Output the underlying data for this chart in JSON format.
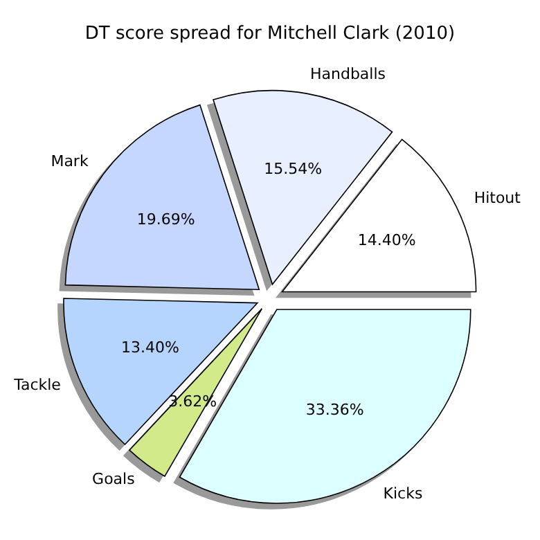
{
  "chart_data": {
    "type": "pie",
    "title": "DT score spread for Mitchell Clark (2010)",
    "categories": [
      "Hitout",
      "Handballs",
      "Mark",
      "Tackle",
      "Goals",
      "Kicks"
    ],
    "values": [
      14.4,
      15.54,
      19.69,
      13.4,
      3.62,
      33.36
    ],
    "value_labels": [
      "14.40%",
      "15.54%",
      "19.69%",
      "13.40%",
      "3.62%",
      "33.36%"
    ],
    "colors": [
      "#ffffff",
      "#e8efff",
      "#c5d6ff",
      "#b5d5ff",
      "#d2ea8a",
      "#dcffff"
    ]
  }
}
